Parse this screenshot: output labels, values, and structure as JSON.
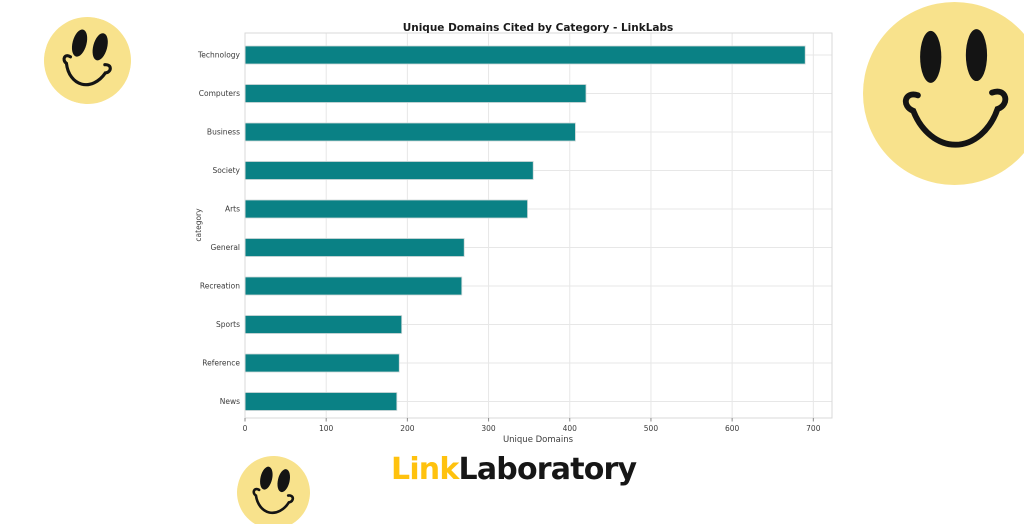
{
  "chart_data": {
    "type": "bar",
    "orientation": "horizontal",
    "title": "Unique Domains Cited by Category - LinkLabs",
    "xlabel": "Unique Domains",
    "ylabel": "category",
    "categories": [
      "Technology",
      "Computers",
      "Business",
      "Society",
      "Arts",
      "General",
      "Recreation",
      "Sports",
      "Reference",
      "News"
    ],
    "values": [
      690,
      420,
      407,
      355,
      348,
      270,
      267,
      193,
      190,
      187
    ],
    "xlim": [
      0,
      723
    ],
    "xticks": [
      0,
      100,
      200,
      300,
      400,
      500,
      600,
      700
    ],
    "grid": true,
    "legend": "none",
    "bar_color": "#0a8185",
    "bar_edge_color": "#cfd8d8",
    "grid_color": "#e7e7e7",
    "spine_color": "#d9d9d9",
    "text_color": "#3c3c3c",
    "title_color": "#1a1a1a"
  },
  "branding": {
    "logo_link": "Link",
    "logo_laboratory": "Laboratory",
    "logo_link_color": "#FFC20E",
    "logo_laboratory_color": "#161616"
  },
  "decorations": {
    "smiley_color": "#F8E28C",
    "smiley_feature_color": "#141414"
  }
}
